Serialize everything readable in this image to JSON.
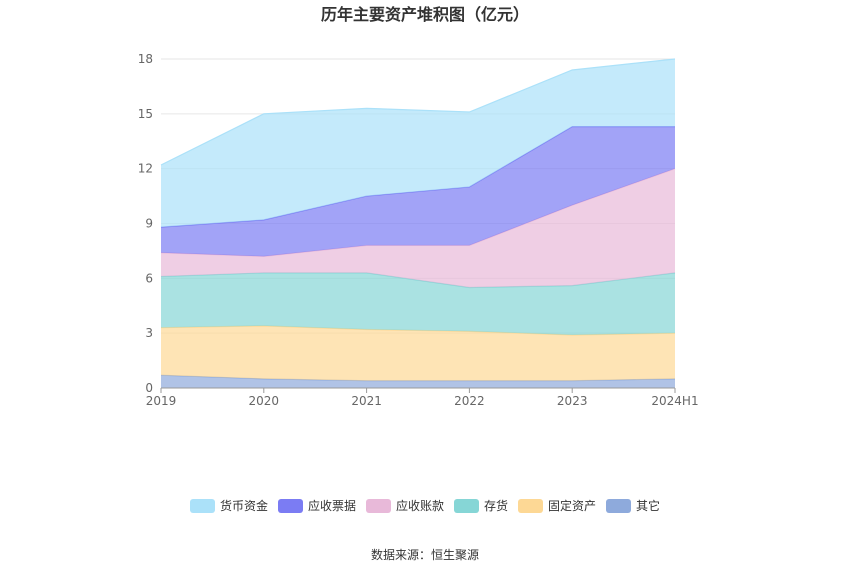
{
  "chart_data": {
    "type": "area",
    "stacked": true,
    "title": "历年主要资产堆积图（亿元）",
    "x": [
      "2019",
      "2020",
      "2021",
      "2022",
      "2023",
      "2024H1"
    ],
    "ylim": [
      0,
      18
    ],
    "yticks": [
      0,
      3,
      6,
      9,
      12,
      15,
      18
    ],
    "grid": true,
    "legend_position": "bottom",
    "series": [
      {
        "name": "其它",
        "color": "#8eaadc",
        "values": [
          0.7,
          0.5,
          0.4,
          0.4,
          0.4,
          0.5
        ]
      },
      {
        "name": "固定资产",
        "color": "#fdd895",
        "values": [
          2.6,
          2.9,
          2.8,
          2.7,
          2.5,
          2.5
        ]
      },
      {
        "name": "存货",
        "color": "#86d6d6",
        "values": [
          2.8,
          2.9,
          3.1,
          2.4,
          2.7,
          3.3
        ]
      },
      {
        "name": "应收账款",
        "color": "#e8b9d9",
        "values": [
          1.3,
          0.9,
          1.5,
          2.3,
          4.4,
          5.7
        ]
      },
      {
        "name": "应收票据",
        "color": "#7b7cf3",
        "values": [
          1.4,
          2.0,
          2.7,
          3.2,
          4.3,
          2.3
        ]
      },
      {
        "name": "货币资金",
        "color": "#abe1f9",
        "values": [
          3.4,
          5.8,
          4.8,
          4.1,
          3.1,
          3.7
        ]
      }
    ],
    "legend_order": [
      "货币资金",
      "应收票据",
      "应收账款",
      "存货",
      "固定资产",
      "其它"
    ]
  },
  "source_text": "数据来源：恒生聚源"
}
